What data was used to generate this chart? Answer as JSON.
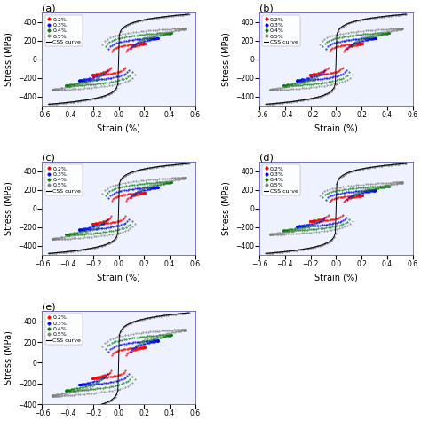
{
  "subplots": [
    {
      "label": "(a)",
      "xlim": [
        -0.6,
        0.6
      ],
      "ylim": [
        -500,
        500
      ],
      "amps": [
        0.2,
        0.3,
        0.4,
        0.5
      ],
      "sig_amps": [
        170,
        230,
        285,
        330
      ],
      "legend_labels": [
        "0.2%",
        "0.3%",
        "0.4%",
        "0.5%"
      ]
    },
    {
      "label": "(b)",
      "xlim": [
        -0.6,
        0.6
      ],
      "ylim": [
        -500,
        500
      ],
      "amps": [
        0.2,
        0.3,
        0.4,
        0.5
      ],
      "sig_amps": [
        170,
        230,
        285,
        330
      ],
      "legend_labels": [
        "0.2%",
        "0.3%",
        "0.4%",
        "0.5%"
      ]
    },
    {
      "label": "(c)",
      "xlim": [
        -0.6,
        0.6
      ],
      "ylim": [
        -500,
        500
      ],
      "amps": [
        0.2,
        0.3,
        0.4,
        0.5
      ],
      "sig_amps": [
        170,
        230,
        285,
        330
      ],
      "legend_labels": [
        "0.2%",
        "0.3%",
        "0.4%",
        "0.5%"
      ]
    },
    {
      "label": "(d)",
      "xlim": [
        -0.6,
        0.6
      ],
      "ylim": [
        -500,
        500
      ],
      "amps": [
        0.2,
        0.3,
        0.4,
        0.5
      ],
      "sig_amps": [
        140,
        195,
        240,
        280
      ],
      "legend_labels": [
        "0.2%",
        "0.3%",
        "0.4%",
        "0.5%"
      ]
    },
    {
      "label": "(e)",
      "xlim": [
        -0.6,
        0.6
      ],
      "ylim": [
        -400,
        500
      ],
      "amps": [
        0.2,
        0.3,
        0.4,
        0.5
      ],
      "sig_amps": [
        150,
        215,
        270,
        320
      ],
      "legend_labels": [
        "0.2%",
        "0.3%",
        "0.4%",
        "0.5%"
      ]
    }
  ],
  "colors": [
    "red",
    "blue",
    "green",
    "gray"
  ],
  "markers": [
    "o",
    "s",
    "D",
    "+"
  ],
  "xlabel": "Strain (%)",
  "ylabel": "Stress (MPa)",
  "subplot_bg": "#eef2ff",
  "font_size": 7,
  "title_fontsize": 8,
  "legend_fontsize": 4.5,
  "css_K": 950,
  "css_n": 0.13,
  "loop_n": 0.18
}
